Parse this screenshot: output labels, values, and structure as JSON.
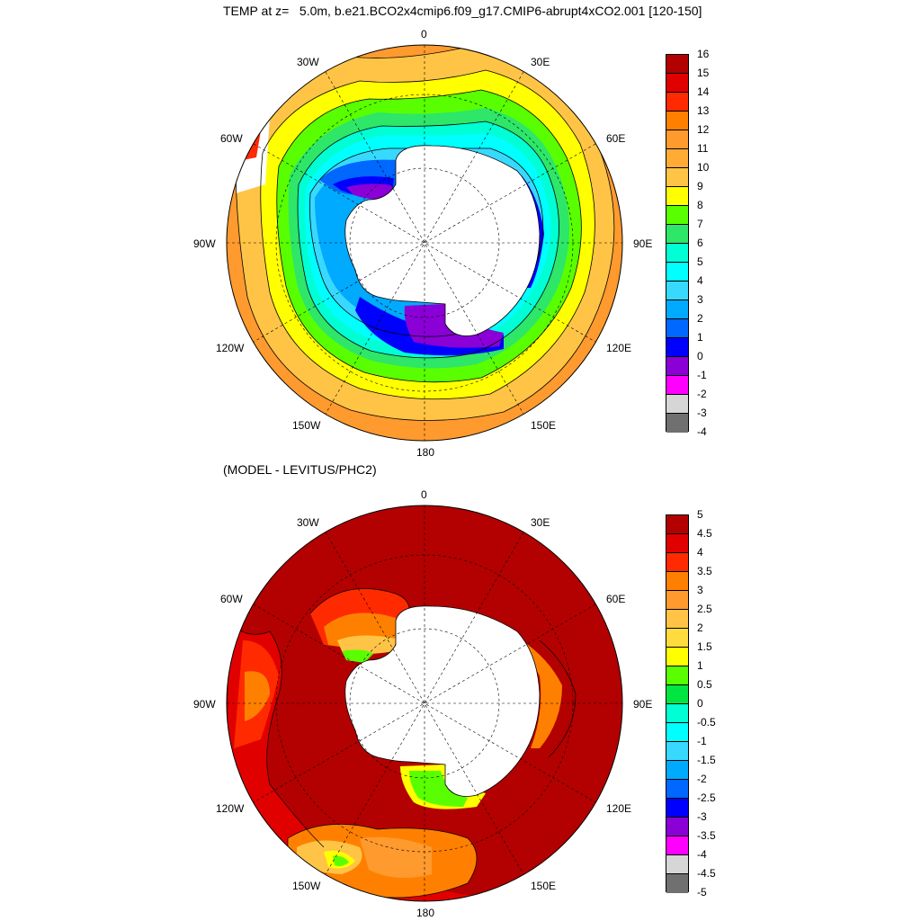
{
  "top": {
    "title": "TEMP at z=   5.0m, b.e21.BCO2x4cmip6.f09_g17.CMIP6-abrupt4xCO2.001 [120-150]",
    "lon_labels": {
      "n": "0",
      "ne": "30E",
      "e1": "60E",
      "e": "90E",
      "se1": "120E",
      "se": "150E",
      "s": "180",
      "sw": "150W",
      "sw1": "120W",
      "w": "90W",
      "nw1": "60W",
      "nw": "30W"
    },
    "colorbar": {
      "colors": [
        "#b30000",
        "#e10000",
        "#ff2a00",
        "#ff8000",
        "#ff9a2e",
        "#ffab36",
        "#ffc446",
        "#ffff00",
        "#59ff00",
        "#2ee668",
        "#00ffd4",
        "#00ffff",
        "#38d9ff",
        "#00aaff",
        "#0067ff",
        "#0000ff",
        "#8a00d6",
        "#ff00ff",
        "#d6d6d6",
        "#707070"
      ],
      "ticks": [
        "16",
        "15",
        "14",
        "13",
        "12",
        "11",
        "10",
        "9",
        "8",
        "7",
        "6",
        "5",
        "4",
        "3",
        "2",
        "1",
        "0",
        "-1",
        "-2",
        "-3",
        "-4"
      ]
    }
  },
  "bottom": {
    "title": "(MODEL - LEVITUS/PHC2)",
    "lon_labels": {
      "n": "0",
      "ne": "30E",
      "e1": "60E",
      "e": "90E",
      "se1": "120E",
      "se": "150E",
      "s": "180",
      "sw": "150W",
      "sw1": "120W",
      "w": "90W",
      "nw1": "60W",
      "nw": "30W"
    },
    "colorbar": {
      "colors": [
        "#b30000",
        "#e10000",
        "#ff2a00",
        "#ff8000",
        "#ff9a2e",
        "#ffc446",
        "#ffdb3d",
        "#ffff00",
        "#59ff00",
        "#00e640",
        "#00ffd4",
        "#00ffff",
        "#38d9ff",
        "#00aaff",
        "#0067ff",
        "#0000ff",
        "#8a00d6",
        "#ff00ff",
        "#d6d6d6",
        "#707070"
      ],
      "ticks": [
        "5",
        "4.5",
        "4",
        "3.5",
        "3",
        "2.5",
        "2",
        "1.5",
        "1",
        "0.5",
        "0",
        "-0.5",
        "-1",
        "-1.5",
        "-2",
        "-2.5",
        "-3",
        "-3.5",
        "-4",
        "-4.5",
        "-5"
      ]
    }
  }
}
